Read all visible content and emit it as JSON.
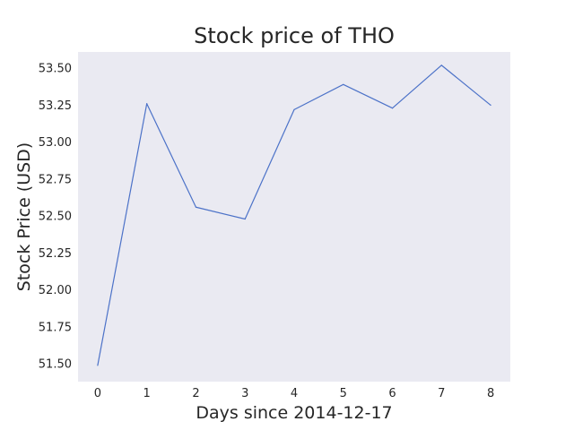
{
  "chart_data": {
    "type": "line",
    "title": "Stock price of THO",
    "xlabel": "Days since 2014-12-17",
    "ylabel": "Stock Price (USD)",
    "x": [
      0,
      1,
      2,
      3,
      4,
      5,
      6,
      7,
      8
    ],
    "series": [
      {
        "values": [
          51.49,
          53.26,
          52.56,
          52.48,
          53.22,
          53.39,
          53.23,
          53.52,
          53.25
        ]
      }
    ],
    "xlim": [
      -0.4,
      8.4
    ],
    "ylim": [
      51.38,
      53.61
    ],
    "xticks": [
      "0",
      "1",
      "2",
      "3",
      "4",
      "5",
      "6",
      "7",
      "8"
    ],
    "yticks": [
      "51.50",
      "51.75",
      "52.00",
      "52.25",
      "52.50",
      "52.75",
      "53.00",
      "53.25",
      "53.50"
    ],
    "grid": false,
    "colors": {
      "line": "#4c72c8",
      "plot_background": "#eaeaf2"
    }
  }
}
